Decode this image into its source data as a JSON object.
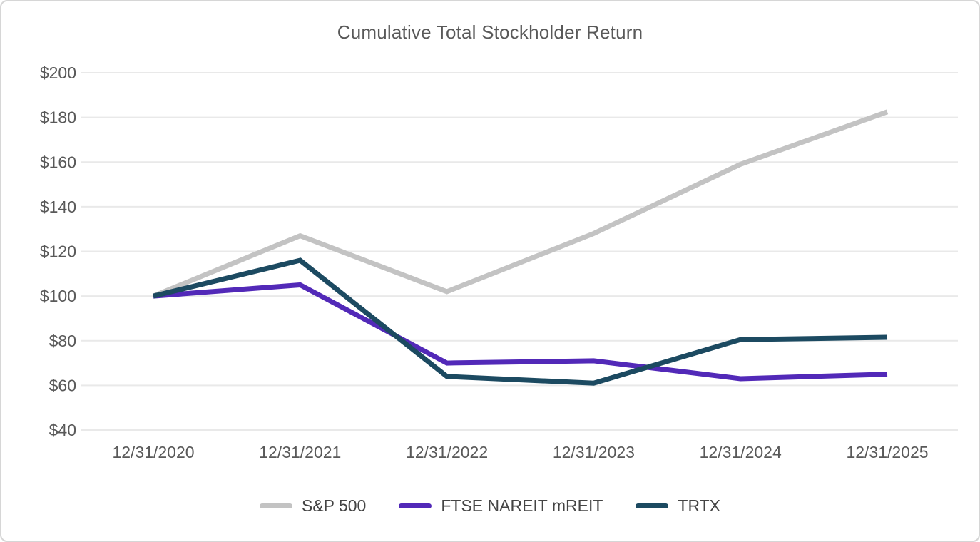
{
  "chart_data": {
    "type": "line",
    "title": "Cumulative Total Stockholder Return",
    "categories": [
      "12/31/2020",
      "12/31/2021",
      "12/31/2022",
      "12/31/2023",
      "12/31/2024",
      "12/31/2025"
    ],
    "series": [
      {
        "name": "S&P 500",
        "color": "#c3c3c3",
        "values": [
          100,
          127,
          102,
          128,
          159,
          182.5
        ]
      },
      {
        "name": "FTSE NAREIT mREIT",
        "color": "#5229b8",
        "values": [
          100,
          105,
          70,
          71,
          63,
          65
        ]
      },
      {
        "name": "TRTX",
        "color": "#1c4a61",
        "values": [
          100,
          116,
          64,
          61,
          80.5,
          81.5
        ]
      }
    ],
    "ylim": [
      40,
      200
    ],
    "y_tick_step": 20,
    "y_tick_labels": [
      "$40",
      "$60",
      "$80",
      "$100",
      "$120",
      "$140",
      "$160",
      "$180",
      "$200"
    ],
    "xlabel": "",
    "ylabel": "",
    "grid": true,
    "legend_position": "bottom"
  },
  "styles": {
    "title_color": "#595959",
    "axis_label_color": "#595959",
    "gridline_color": "#e9e9e9",
    "border_color": "#d6d6d6",
    "background": "#ffffff"
  }
}
